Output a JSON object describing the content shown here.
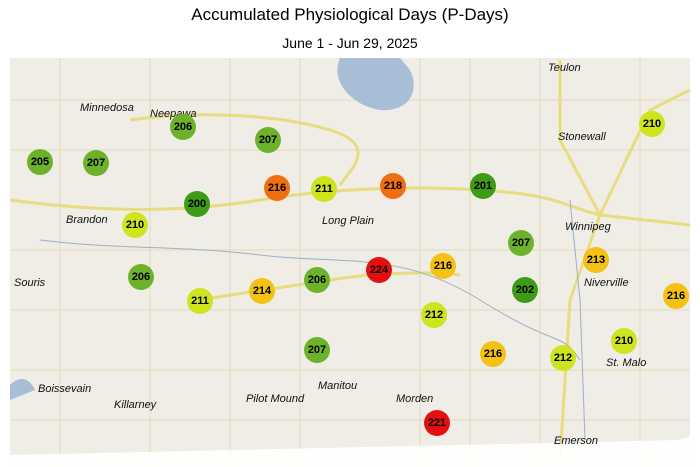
{
  "title": "Accumulated Physiological Days (P-Days)",
  "subtitle": "June 1 - Jun 29, 2025",
  "places": [
    "Teulon",
    "Minnedosa",
    "Neepawa",
    "Stonewall",
    "Brandon",
    "Long Plain",
    "Winnipeg",
    "Souris",
    "Niverville",
    "St. Malo",
    "Boissevain",
    "Killarney",
    "Pilot Mound",
    "Manitou",
    "Morden",
    "Emerson"
  ],
  "stations": [
    {
      "value": 205,
      "color": "#6cb22a"
    },
    {
      "value": 207,
      "color": "#6cb22a"
    },
    {
      "value": 206,
      "color": "#6cb22a"
    },
    {
      "value": 207,
      "color": "#6cb22a"
    },
    {
      "value": 200,
      "color": "#3d9b16"
    },
    {
      "value": 216,
      "color": "#f06e10"
    },
    {
      "value": 211,
      "color": "#cde41e"
    },
    {
      "value": 218,
      "color": "#f06e10"
    },
    {
      "value": 201,
      "color": "#3d9b16"
    },
    {
      "value": 210,
      "color": "#cde41e"
    },
    {
      "value": 210,
      "color": "#cde41e"
    },
    {
      "value": 206,
      "color": "#6cb22a"
    },
    {
      "value": 211,
      "color": "#cde41e"
    },
    {
      "value": 214,
      "color": "#f4c214"
    },
    {
      "value": 206,
      "color": "#6cb22a"
    },
    {
      "value": 224,
      "color": "#e41010"
    },
    {
      "value": 216,
      "color": "#f4c214"
    },
    {
      "value": 207,
      "color": "#6cb22a"
    },
    {
      "value": 213,
      "color": "#f4c214"
    },
    {
      "value": 202,
      "color": "#3d9b16"
    },
    {
      "value": 216,
      "color": "#f4c214"
    },
    {
      "value": 212,
      "color": "#cde41e"
    },
    {
      "value": 207,
      "color": "#6cb22a"
    },
    {
      "value": 216,
      "color": "#f4c214"
    },
    {
      "value": 212,
      "color": "#cde41e"
    },
    {
      "value": 210,
      "color": "#cde41e"
    },
    {
      "value": 221,
      "color": "#e41010"
    }
  ]
}
